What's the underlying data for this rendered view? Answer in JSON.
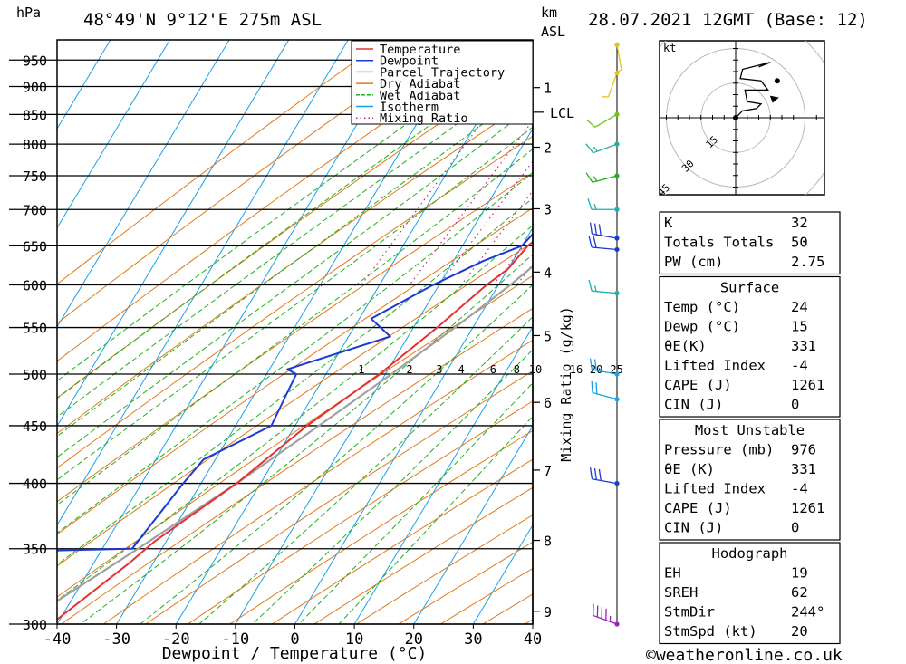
{
  "header": {
    "p_unit": "hPa",
    "location": "48°49'N  9°12'E  275m  ASL",
    "km_unit": "km",
    "asl_unit": "ASL",
    "datetime": "28.07.2021  12GMT  (Base: 12)"
  },
  "footer": {
    "credit": "©weatheronline.co.uk"
  },
  "chart_data": {
    "type": "skew-t",
    "xlabel": "Dewpoint / Temperature (°C)",
    "ylabel": "Mixing Ratio (g/kg)",
    "x_ticks": [
      "-40",
      "-30",
      "-20",
      "-10",
      "0",
      "10",
      "20",
      "30",
      "40"
    ],
    "pressure_levels": [
      300,
      350,
      400,
      450,
      500,
      550,
      600,
      650,
      700,
      750,
      800,
      850,
      900,
      950
    ],
    "p_range": [
      300,
      990
    ],
    "t_range_at_bottom": [
      -40,
      40
    ],
    "km_ticks": [
      {
        "label": "1",
        "p": 898
      },
      {
        "label": "2",
        "p": 795
      },
      {
        "label": "3",
        "p": 701
      },
      {
        "label": "4",
        "p": 616
      },
      {
        "label": "5",
        "p": 541
      },
      {
        "label": "6",
        "p": 472
      },
      {
        "label": "7",
        "p": 411
      },
      {
        "label": "8",
        "p": 356
      },
      {
        "label": "9",
        "p": 308
      }
    ],
    "lcl": {
      "label": "LCL",
      "p": 854
    },
    "mixing_ratio_labels": [
      "1",
      "2",
      "3",
      "4",
      "6",
      "8",
      "10",
      "16",
      "20",
      "25"
    ],
    "mixing_ratio_values": [
      1,
      2,
      3,
      4,
      6,
      8,
      10,
      16,
      20,
      25
    ],
    "legend": [
      {
        "name": "Temperature",
        "color": "#e83030"
      },
      {
        "name": "Dewpoint",
        "color": "#1a3ad6"
      },
      {
        "name": "Parcel Trajectory",
        "color": "#a0a0a0"
      },
      {
        "name": "Dry Adiabat",
        "color": "#e07a1a"
      },
      {
        "name": "Wet Adiabat",
        "color": "#20b020"
      },
      {
        "name": "Isotherm",
        "color": "#1aa0e8"
      },
      {
        "name": "Mixing Ratio",
        "color": "#d0207a"
      }
    ],
    "temperature": [
      [
        985,
        25
      ],
      [
        950,
        21
      ],
      [
        900,
        17
      ],
      [
        850,
        13
      ],
      [
        800,
        10.5
      ],
      [
        750,
        9
      ],
      [
        700,
        5
      ],
      [
        650,
        1
      ],
      [
        620,
        0
      ],
      [
        600,
        -2
      ],
      [
        550,
        -6
      ],
      [
        500,
        -11
      ],
      [
        450,
        -18
      ],
      [
        400,
        -24
      ],
      [
        355,
        -32
      ],
      [
        340,
        -34
      ],
      [
        300,
        -41
      ]
    ],
    "dewpoint": [
      [
        985,
        16
      ],
      [
        950,
        15
      ],
      [
        900,
        14.5
      ],
      [
        850,
        14
      ],
      [
        800,
        11
      ],
      [
        760,
        5
      ],
      [
        700,
        2
      ],
      [
        650,
        0
      ],
      [
        630,
        -5
      ],
      [
        600,
        -11
      ],
      [
        560,
        -18
      ],
      [
        540,
        -13
      ],
      [
        505,
        -27
      ],
      [
        500,
        -25
      ],
      [
        450,
        -24
      ],
      [
        420,
        -32
      ],
      [
        400,
        -33
      ],
      [
        350,
        -35
      ],
      [
        348,
        -55
      ],
      [
        300,
        -55
      ]
    ],
    "parcel": [
      [
        985,
        25
      ],
      [
        854,
        15.5
      ],
      [
        800,
        14
      ],
      [
        750,
        12
      ],
      [
        700,
        9
      ],
      [
        650,
        6
      ],
      [
        600,
        2
      ],
      [
        550,
        -3
      ],
      [
        500,
        -9
      ],
      [
        450,
        -16
      ],
      [
        400,
        -24
      ],
      [
        350,
        -34
      ],
      [
        300,
        -46
      ]
    ],
    "wind_profile": [
      {
        "p": 300,
        "dir": 290,
        "kt": 45,
        "color": "#a020c0"
      },
      {
        "p": 400,
        "dir": 280,
        "kt": 30,
        "color": "#1a3ad6"
      },
      {
        "p": 475,
        "dir": 285,
        "kt": 20,
        "color": "#1aa0e8"
      },
      {
        "p": 500,
        "dir": 280,
        "kt": 20,
        "color": "#1aa0e8"
      },
      {
        "p": 590,
        "dir": 275,
        "kt": 15,
        "color": "#1ab0b0"
      },
      {
        "p": 645,
        "dir": 275,
        "kt": 20,
        "color": "#1a3ad6"
      },
      {
        "p": 660,
        "dir": 280,
        "kt": 30,
        "color": "#1a3ad6"
      },
      {
        "p": 700,
        "dir": 270,
        "kt": 15,
        "color": "#1ab0b0"
      },
      {
        "p": 750,
        "dir": 255,
        "kt": 15,
        "color": "#20b020"
      },
      {
        "p": 800,
        "dir": 250,
        "kt": 15,
        "color": "#20b0a0"
      },
      {
        "p": 850,
        "dir": 240,
        "kt": 10,
        "color": "#70c020"
      },
      {
        "p": 925,
        "dir": 200,
        "kt": 5,
        "color": "#e8c020"
      },
      {
        "p": 980,
        "dir": 170,
        "kt": 5,
        "color": "#e8c020"
      }
    ],
    "hodograph": {
      "unit": "kt",
      "ring_labels": [
        "15",
        "30",
        "45"
      ],
      "ring_values": [
        15,
        30,
        45
      ],
      "points": [
        [
          0,
          0
        ],
        [
          3,
          3
        ],
        [
          9,
          4
        ],
        [
          11,
          6
        ],
        [
          5,
          7
        ],
        [
          4,
          12
        ],
        [
          14,
          12
        ],
        [
          11,
          16
        ],
        [
          2,
          17
        ],
        [
          3,
          21
        ],
        [
          15,
          24
        ],
        [
          10,
          22
        ]
      ],
      "storm_motion_dir": 244,
      "storm_motion_kt": 20
    }
  },
  "indices": {
    "general": [
      {
        "label": "K",
        "value": "32"
      },
      {
        "label": "Totals Totals",
        "value": "50"
      },
      {
        "label": "PW (cm)",
        "value": "2.75"
      }
    ],
    "surface": {
      "title": "Surface",
      "rows": [
        {
          "label": "Temp (°C)",
          "value": "24"
        },
        {
          "label": "Dewp (°C)",
          "value": "15"
        },
        {
          "label": "θE(K)",
          "value": "331"
        },
        {
          "label": "Lifted Index",
          "value": "-4"
        },
        {
          "label": "CAPE (J)",
          "value": "1261"
        },
        {
          "label": "CIN (J)",
          "value": "0"
        }
      ]
    },
    "most_unstable": {
      "title": "Most Unstable",
      "rows": [
        {
          "label": "Pressure (mb)",
          "value": "976"
        },
        {
          "label": "θE (K)",
          "value": "331"
        },
        {
          "label": "Lifted Index",
          "value": "-4"
        },
        {
          "label": "CAPE (J)",
          "value": "1261"
        },
        {
          "label": "CIN (J)",
          "value": "0"
        }
      ]
    },
    "hodograph": {
      "title": "Hodograph",
      "rows": [
        {
          "label": "EH",
          "value": "19"
        },
        {
          "label": "SREH",
          "value": "62"
        },
        {
          "label": "StmDir",
          "value": "244°"
        },
        {
          "label": "StmSpd (kt)",
          "value": "20"
        }
      ]
    }
  }
}
